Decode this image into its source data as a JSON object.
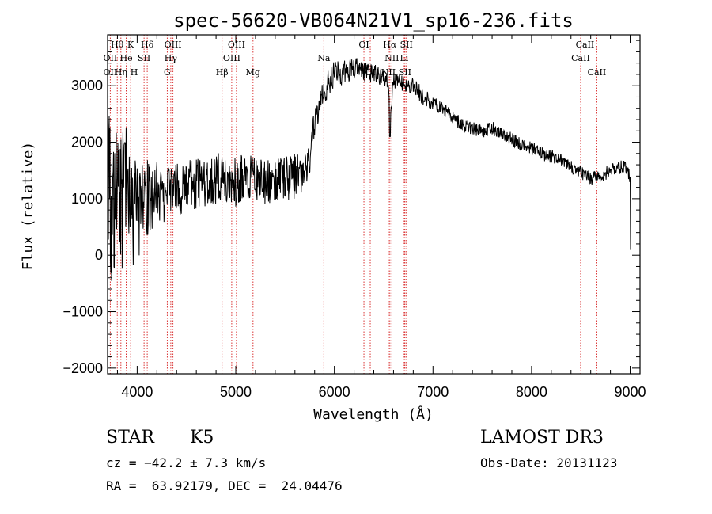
{
  "chart_data": {
    "type": "line",
    "title": "spec-56620-VB064N21V1_sp16-236.fits",
    "xlabel": "Wavelength (Å)",
    "ylabel": "Flux (relative)",
    "xlim": [
      3700,
      9100
    ],
    "ylim": [
      -2100,
      3900
    ],
    "xticks": [
      4000,
      5000,
      6000,
      7000,
      8000,
      9000
    ],
    "yticks": [
      -2000,
      -1000,
      0,
      1000,
      2000,
      3000
    ],
    "x_tick_labels": [
      "4000",
      "5000",
      "6000",
      "7000",
      "8000",
      "9000"
    ],
    "y_tick_labels": [
      "−2000",
      "−1000",
      "0",
      "1000",
      "2000",
      "3000"
    ],
    "series": [
      {
        "name": "flux",
        "x": [
          3700,
          3750,
          3800,
          3850,
          3900,
          3950,
          4000,
          4050,
          4100,
          4150,
          4200,
          4250,
          4300,
          4350,
          4400,
          4450,
          4500,
          4600,
          4700,
          4800,
          4900,
          5000,
          5100,
          5200,
          5300,
          5400,
          5500,
          5600,
          5700,
          5750,
          5800,
          5850,
          5900,
          5950,
          6000,
          6100,
          6200,
          6300,
          6400,
          6500,
          6550,
          6563,
          6600,
          6700,
          6800,
          6900,
          7000,
          7100,
          7200,
          7300,
          7400,
          7500,
          7600,
          7700,
          7800,
          7900,
          8000,
          8100,
          8200,
          8300,
          8400,
          8500,
          8600,
          8700,
          8800,
          8900,
          8950,
          9000,
          9010
        ],
        "values": [
          1200,
          1000,
          800,
          900,
          1100,
          700,
          800,
          900,
          1000,
          1050,
          1100,
          1000,
          1150,
          1200,
          1250,
          1100,
          1300,
          1250,
          1300,
          1350,
          1400,
          1300,
          1400,
          1350,
          1300,
          1300,
          1350,
          1400,
          1500,
          1800,
          2300,
          2650,
          2900,
          3100,
          3200,
          3250,
          3300,
          3250,
          3200,
          3150,
          3050,
          2200,
          3100,
          3050,
          3000,
          2800,
          2700,
          2600,
          2450,
          2300,
          2250,
          2200,
          2250,
          2150,
          2050,
          1950,
          1900,
          1800,
          1750,
          1700,
          1550,
          1450,
          1350,
          1400,
          1500,
          1550,
          1600,
          1350,
          100
        ],
        "noise": [
          1500,
          1500,
          1400,
          1300,
          1200,
          1100,
          900,
          800,
          700,
          650,
          600,
          550,
          500,
          500,
          450,
          450,
          450,
          450,
          450,
          450,
          450,
          450,
          400,
          400,
          400,
          400,
          400,
          400,
          350,
          350,
          300,
          250,
          250,
          250,
          250,
          220,
          220,
          180,
          180,
          150,
          150,
          150,
          150,
          150,
          150,
          150,
          150,
          120,
          120,
          120,
          120,
          120,
          120,
          120,
          120,
          120,
          120,
          120,
          120,
          120,
          120,
          120,
          120,
          120,
          120,
          120,
          120,
          120,
          100
        ]
      }
    ],
    "lines": [
      {
        "label": "Hθ",
        "x": 3798,
        "row": 0
      },
      {
        "label": "Hη",
        "x": 3835,
        "row": 2
      },
      {
        "label": "OII",
        "x": 3727,
        "row": 1
      },
      {
        "label": "OII",
        "x": 3727,
        "row": 2
      },
      {
        "label": "He",
        "x": 3889,
        "row": 1
      },
      {
        "label": "K",
        "x": 3934,
        "row": 0
      },
      {
        "label": "H",
        "x": 3969,
        "row": 2
      },
      {
        "label": "SII",
        "x": 4070,
        "row": 1
      },
      {
        "label": "Hδ",
        "x": 4102,
        "row": 0
      },
      {
        "label": "G",
        "x": 4305,
        "row": 2
      },
      {
        "label": "Hγ",
        "x": 4341,
        "row": 1
      },
      {
        "label": "OIII",
        "x": 4363,
        "row": 0
      },
      {
        "label": "Hβ",
        "x": 4861,
        "row": 2
      },
      {
        "label": "OIII",
        "x": 4959,
        "row": 1
      },
      {
        "label": "OIII",
        "x": 5007,
        "row": 0
      },
      {
        "label": "Mg",
        "x": 5175,
        "row": 2
      },
      {
        "label": "Na",
        "x": 5893,
        "row": 1
      },
      {
        "label": "OI",
        "x": 6300,
        "row": 0
      },
      {
        "label": "OI",
        "x": 6364,
        "row": 2
      },
      {
        "label": "NII",
        "x": 6548,
        "row": 2
      },
      {
        "label": "Hα",
        "x": 6563,
        "row": 0
      },
      {
        "label": "NII",
        "x": 6583,
        "row": 1
      },
      {
        "label": "SII",
        "x": 6716,
        "row": 2
      },
      {
        "label": "SII",
        "x": 6731,
        "row": 0
      },
      {
        "label": "Li",
        "x": 6708,
        "row": 1
      },
      {
        "label": "CaII",
        "x": 8498,
        "row": 1
      },
      {
        "label": "CaII",
        "x": 8542,
        "row": 0
      },
      {
        "label": "CaII",
        "x": 8662,
        "row": 2
      }
    ],
    "line_color": "#d62020"
  },
  "info": {
    "object_type": "STAR",
    "subclass": "K5",
    "survey": "LAMOST DR3",
    "cz": "cz = −42.2 ± 7.3 km/s",
    "obs_date": "Obs-Date: 20131123",
    "coords": "RA =  63.92179, DEC =  24.04476"
  }
}
